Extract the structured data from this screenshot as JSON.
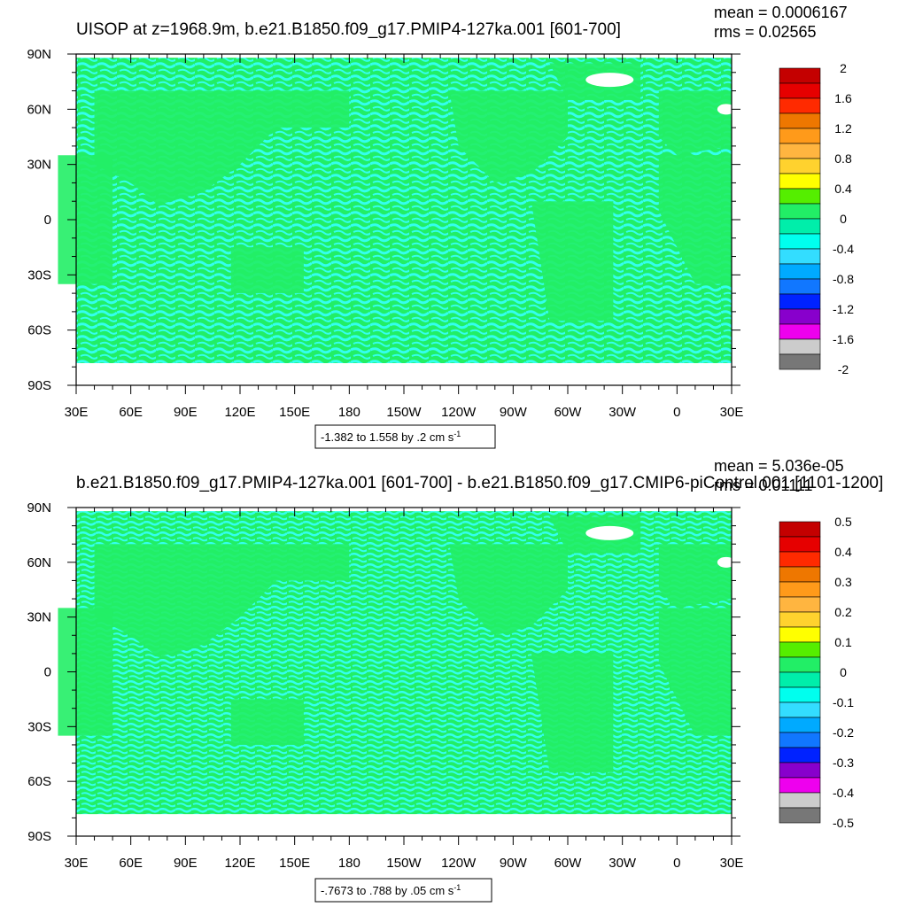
{
  "chart_data": [
    {
      "type": "heatmap",
      "title": "UISOP at z=1968.9m, b.e21.B1850.f09_g17.PMIP4-127ka.001 [601-700]",
      "mean_label": "mean = 0.0006167",
      "rms_label": "rms = 0.02565",
      "xticks": [
        "30E",
        "60E",
        "90E",
        "120E",
        "150E",
        "180",
        "150W",
        "120W",
        "90W",
        "60W",
        "30W",
        "0",
        "30E"
      ],
      "yticks": [
        "90N",
        "60N",
        "30N",
        "0",
        "30S",
        "60S",
        "90S"
      ],
      "xlim": [
        30,
        390
      ],
      "ylim": [
        -90,
        90
      ],
      "colorbar": {
        "labels": [
          "2",
          "1.6",
          "1.2",
          "0.8",
          "0.4",
          "0",
          "-0.4",
          "-0.8",
          "-1.2",
          "-1.6",
          "-2"
        ],
        "colors": [
          "#c40000",
          "#e60000",
          "#ff2a00",
          "#ee7700",
          "#ff9a1a",
          "#ffb540",
          "#ffd22e",
          "#ffff00",
          "#55ee00",
          "#22ee66",
          "#00eeaa",
          "#00ffee",
          "#33ddff",
          "#00aaff",
          "#1177ff",
          "#0022ff",
          "#8800cc",
          "#ee00ee",
          "#cccccc",
          "#777777"
        ]
      },
      "range_label": "-1.382 to 1.558 by .2 cm s",
      "range_sup": "-1",
      "background": "#22ee66",
      "pattern": "#33ffee"
    },
    {
      "type": "heatmap",
      "title": "b.e21.B1850.f09_g17.PMIP4-127ka.001 [601-700] - b.e21.B1850.f09_g17.CMIP6-piControl.001 [1101-1200]",
      "mean_label": "mean = 5.036e-05",
      "rms_label": "rms = 0.01111",
      "xticks": [
        "30E",
        "60E",
        "90E",
        "120E",
        "150E",
        "180",
        "150W",
        "120W",
        "90W",
        "60W",
        "30W",
        "0",
        "30E"
      ],
      "yticks": [
        "90N",
        "60N",
        "30N",
        "0",
        "30S",
        "60S",
        "90S"
      ],
      "xlim": [
        30,
        390
      ],
      "ylim": [
        -90,
        90
      ],
      "colorbar": {
        "labels": [
          "0.5",
          "0.4",
          "0.3",
          "0.2",
          "0.1",
          "0",
          "-0.1",
          "-0.2",
          "-0.3",
          "-0.4",
          "-0.5"
        ],
        "colors": [
          "#c40000",
          "#e60000",
          "#ff2a00",
          "#ee7700",
          "#ff9a1a",
          "#ffb540",
          "#ffd22e",
          "#ffff00",
          "#55ee00",
          "#22ee66",
          "#00eeaa",
          "#00ffee",
          "#33ddff",
          "#00aaff",
          "#1177ff",
          "#0022ff",
          "#8800cc",
          "#ee00ee",
          "#cccccc",
          "#777777"
        ]
      },
      "range_label": "-.7673 to .788 by .05 cm s",
      "range_sup": "-1",
      "background": "#22ee66",
      "pattern": "#33ffee"
    }
  ]
}
